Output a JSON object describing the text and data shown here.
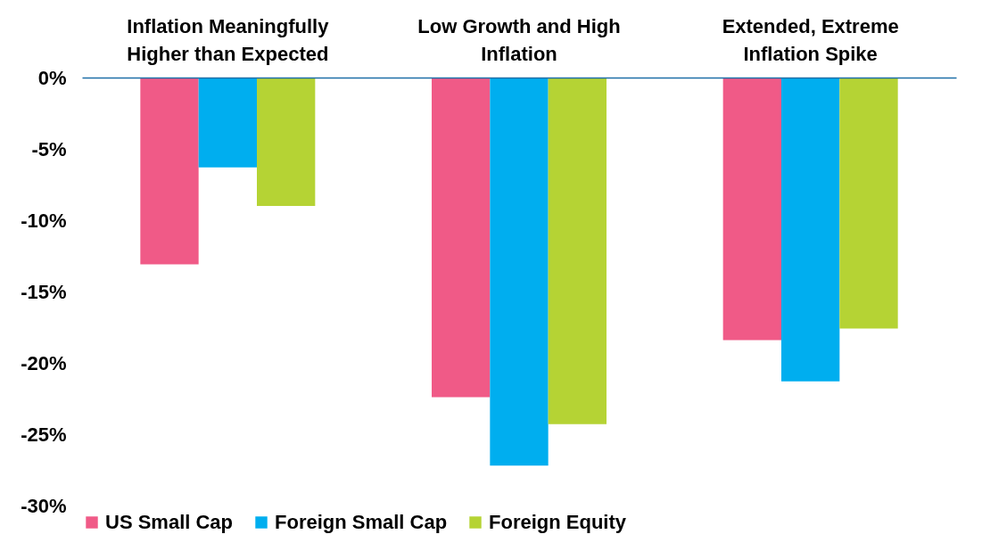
{
  "chart_data": {
    "type": "bar",
    "categories": [
      "Inflation Meaningfully\nHigher than Expected",
      "Low Growth and High\nInflation",
      "Extended, Extreme\nInflation Spike"
    ],
    "series": [
      {
        "name": "US Small Cap",
        "color": "#f05a87",
        "values": [
          -13.1,
          -22.4,
          -18.4
        ]
      },
      {
        "name": "Foreign Small Cap",
        "color": "#00aeef",
        "values": [
          -6.3,
          -27.2,
          -21.3
        ]
      },
      {
        "name": "Foreign Equity",
        "color": "#b5d334",
        "values": [
          -9.0,
          -24.3,
          -17.6
        ]
      }
    ],
    "ylim": [
      -30,
      0
    ],
    "yticks": [
      {
        "value": 0,
        "label": "0%"
      },
      {
        "value": -5,
        "label": "-5%"
      },
      {
        "value": -10,
        "label": "-10%"
      },
      {
        "value": -15,
        "label": "-15%"
      },
      {
        "value": -20,
        "label": "-20%"
      },
      {
        "value": -25,
        "label": "-25%"
      },
      {
        "value": -30,
        "label": "-30%"
      }
    ],
    "grid": false,
    "legend": "bottom"
  }
}
